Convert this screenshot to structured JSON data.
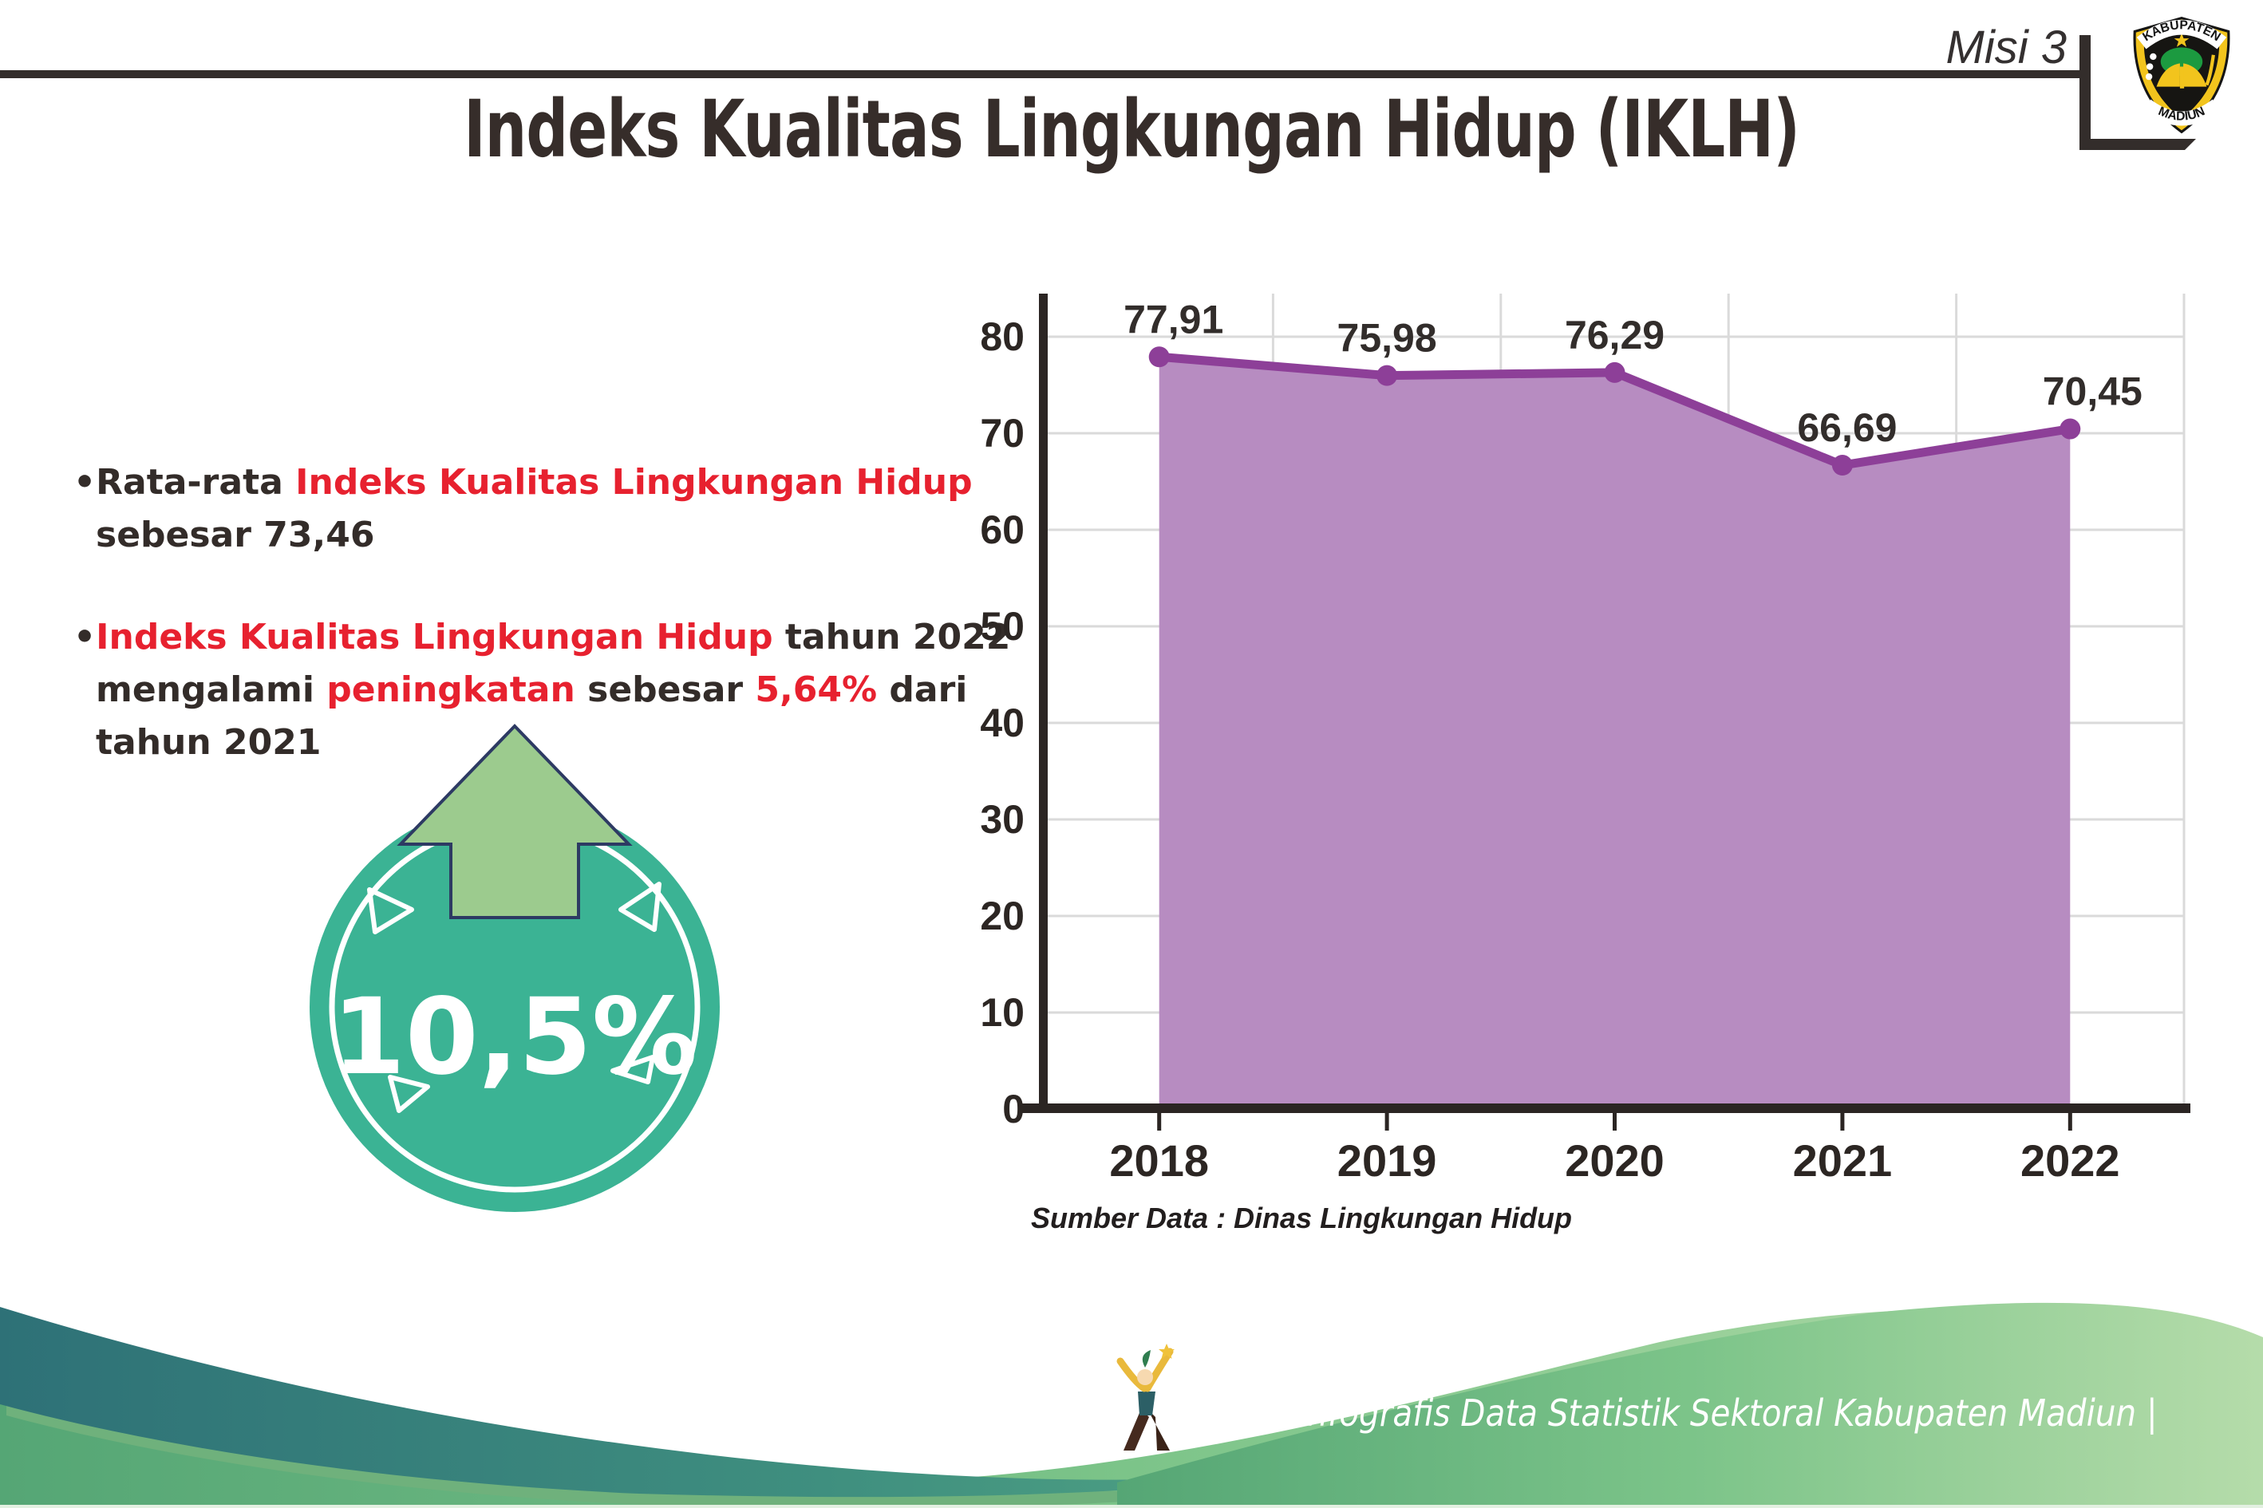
{
  "header": {
    "misi": "Misi 3",
    "title": "Indeks Kualitas Lingkungan Hidup (IKLH)"
  },
  "logo": {
    "top": "KABUPATEN",
    "bottom": "MADIUN"
  },
  "insights": {
    "dot": "•",
    "b1": {
      "s1": "Rata-rata ",
      "s2": "Indeks Kualitas Lingkungan Hidup",
      "s3": "sebesar 73,46"
    },
    "b2": {
      "s1": "Indeks Kualitas Lingkungan Hidup",
      "s2": " tahun 2022",
      "s3": "mengalami ",
      "s4": "peningkatan",
      "s5": " sebesar ",
      "s6": "5,64%",
      "s7": " dari",
      "s8": "tahun 2021"
    }
  },
  "badge": {
    "value": "10,5%"
  },
  "chart_data": {
    "type": "area",
    "title": "",
    "categories": [
      "2018",
      "2019",
      "2020",
      "2021",
      "2022"
    ],
    "values": [
      77.91,
      75.98,
      76.29,
      66.69,
      70.45
    ],
    "value_labels": [
      "77,91",
      "75,98",
      "76,29",
      "66,69",
      "70,45"
    ],
    "xlabel": "",
    "ylabel": "",
    "ylim": [
      0,
      80
    ],
    "ytick_step": 10,
    "grid": true,
    "legend": false,
    "line_color": "#8d3f98",
    "fill_color": "#b78cc1",
    "marker": "circle"
  },
  "source": {
    "text": "Sumber Data : Dinas Lingkungan Hidup"
  },
  "footer": {
    "caption": "Media Infografis Data Statistik Sektoral Kabupaten Madiun |"
  },
  "colors": {
    "dark_text": "#332c29",
    "accent_red": "#e7212f",
    "badge_teal": "#3bb394",
    "arrow_green": "#9ccb8e",
    "arrow_outline": "#2d3a63",
    "axis_dark": "#2b2523",
    "gridline": "#dadada",
    "footer_teal_dark": "#2e7177",
    "footer_green_light": "#b5dcaa"
  }
}
